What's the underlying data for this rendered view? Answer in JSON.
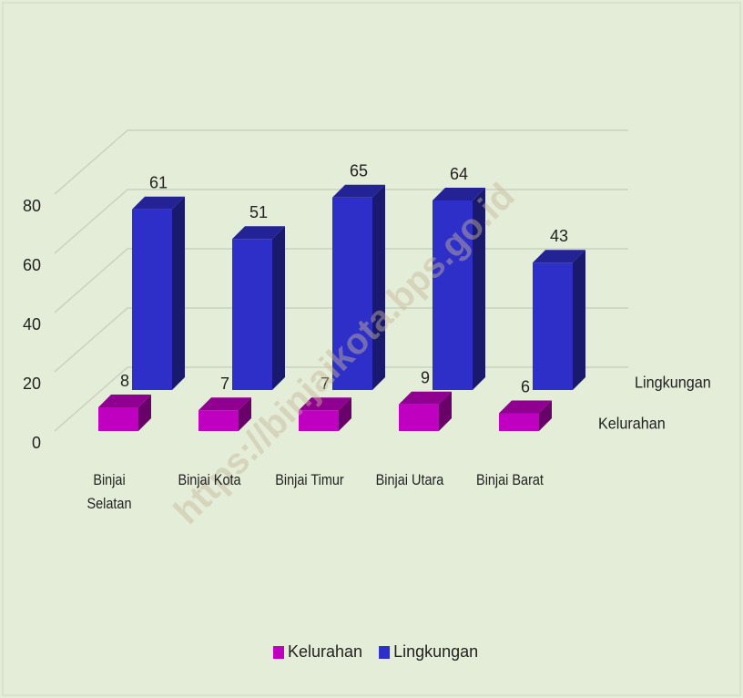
{
  "chart_data": {
    "type": "bar3d",
    "categories": [
      "Binjai Selatan",
      "Binjai Kota",
      "Binjai Timur",
      "Binjai Utara",
      "Binjai Barat"
    ],
    "series": [
      {
        "name": "Kelurahan",
        "color": "#c000c0",
        "values": [
          8,
          7,
          7,
          9,
          6
        ]
      },
      {
        "name": "Lingkungan",
        "color": "#2e2ec8",
        "values": [
          61,
          51,
          65,
          64,
          43
        ]
      }
    ],
    "ylim": [
      0,
      100
    ],
    "yticks": [
      0,
      20,
      40,
      60,
      80
    ],
    "grid": true,
    "legend": "bottom",
    "watermark": "https://binjaikota.bps.go.id"
  }
}
